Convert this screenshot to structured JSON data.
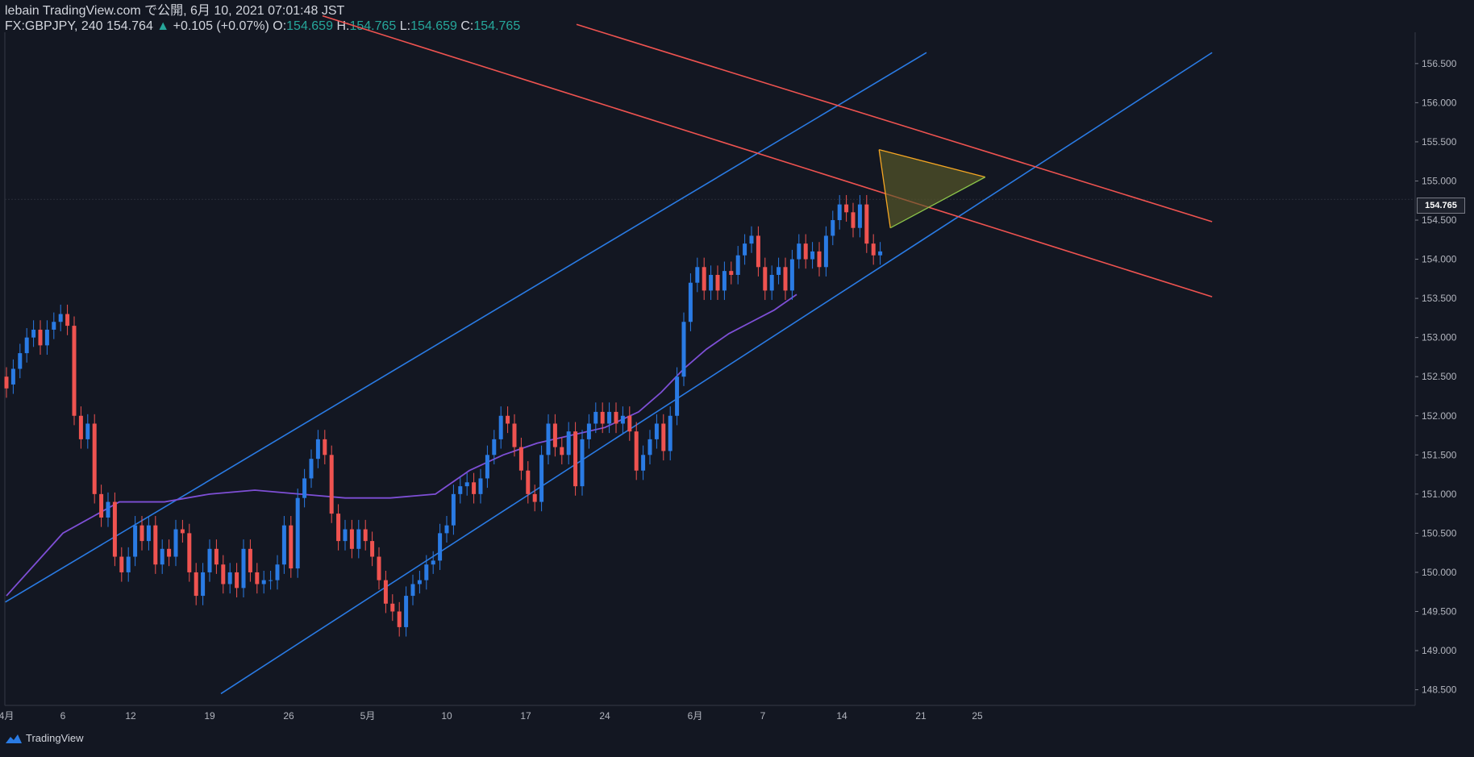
{
  "header": {
    "publisher": "lebain TradingView.com で公開, 6月 10, 2021 07:01:48 JST",
    "symbol": "FX:GBPJPY, 240",
    "last": "154.764",
    "change": "+0.105 (+0.07%)",
    "o_label": "O:",
    "o_value": "154.659",
    "h_label": "H:",
    "h_value": "154.765",
    "l_label": "L:",
    "l_value": "154.659",
    "c_label": "C:",
    "c_value": "154.765"
  },
  "footer": {
    "brand": "TradingView"
  },
  "colors": {
    "background": "#131722",
    "bull": "#2a7be4",
    "bear": "#ef5350",
    "channel_up": "#2a7be4",
    "channel_down": "#ef5350",
    "ma": "#7e4fd6",
    "triangle_fill": "#5b5a2a",
    "triangle_edge": "#f5a623"
  },
  "chart_data": {
    "type": "candlestick",
    "ylim": [
      148.3,
      156.9
    ],
    "y_ticks": [
      "156.500",
      "156.000",
      "155.500",
      "155.000",
      "154.500",
      "154.000",
      "153.500",
      "153.000",
      "152.500",
      "152.000",
      "151.500",
      "151.000",
      "150.500",
      "150.000",
      "149.500",
      "149.000",
      "148.500"
    ],
    "x_ticks": [
      "4月",
      "6",
      "12",
      "19",
      "26",
      "5月",
      "10",
      "17",
      "24",
      "6月",
      "7",
      "14",
      "21",
      "25"
    ],
    "x_tick_days": [
      0,
      5,
      11,
      18,
      25,
      32,
      39,
      46,
      53,
      61,
      67,
      74,
      81,
      86
    ],
    "current_price": "154.765",
    "ma_name": "",
    "ma": [
      [
        0,
        149.7
      ],
      [
        5,
        150.5
      ],
      [
        10,
        150.9
      ],
      [
        14,
        150.9
      ],
      [
        18,
        151.0
      ],
      [
        22,
        151.05
      ],
      [
        26,
        151.0
      ],
      [
        30,
        150.95
      ],
      [
        34,
        150.95
      ],
      [
        38,
        151.0
      ],
      [
        41,
        151.3
      ],
      [
        44,
        151.5
      ],
      [
        47,
        151.65
      ],
      [
        50,
        151.75
      ],
      [
        53,
        151.85
      ],
      [
        56,
        152.05
      ],
      [
        58,
        152.3
      ],
      [
        60,
        152.6
      ],
      [
        62,
        152.85
      ],
      [
        64,
        153.05
      ],
      [
        66,
        153.2
      ],
      [
        68,
        153.35
      ],
      [
        70,
        153.55
      ]
    ],
    "candles": [
      [
        0.0,
        152.5,
        152.35
      ],
      [
        0.6,
        152.4,
        152.6
      ],
      [
        1.2,
        152.6,
        152.8
      ],
      [
        1.8,
        152.8,
        153.0
      ],
      [
        2.4,
        153.0,
        153.1
      ],
      [
        3.0,
        153.1,
        152.9
      ],
      [
        3.6,
        152.9,
        153.1
      ],
      [
        4.2,
        153.1,
        153.2
      ],
      [
        4.8,
        153.2,
        153.3
      ],
      [
        5.4,
        153.3,
        153.15
      ],
      [
        6.0,
        153.15,
        152.0
      ],
      [
        6.6,
        152.0,
        151.7
      ],
      [
        7.2,
        151.7,
        151.9
      ],
      [
        7.8,
        151.9,
        151.0
      ],
      [
        8.4,
        151.0,
        150.7
      ],
      [
        9.0,
        150.7,
        150.9
      ],
      [
        9.6,
        150.9,
        150.2
      ],
      [
        10.2,
        150.2,
        150.0
      ],
      [
        10.8,
        150.0,
        150.2
      ],
      [
        11.4,
        150.2,
        150.6
      ],
      [
        12.0,
        150.6,
        150.4
      ],
      [
        12.6,
        150.4,
        150.6
      ],
      [
        13.2,
        150.6,
        150.1
      ],
      [
        13.8,
        150.1,
        150.3
      ],
      [
        14.4,
        150.3,
        150.2
      ],
      [
        15.0,
        150.2,
        150.55
      ],
      [
        15.6,
        150.55,
        150.5
      ],
      [
        16.2,
        150.5,
        150.0
      ],
      [
        16.8,
        150.0,
        149.7
      ],
      [
        17.4,
        149.7,
        150.0
      ],
      [
        18.0,
        150.0,
        150.3
      ],
      [
        18.6,
        150.3,
        150.1
      ],
      [
        19.2,
        150.1,
        149.85
      ],
      [
        19.8,
        149.85,
        150.0
      ],
      [
        20.4,
        150.0,
        149.8
      ],
      [
        21.0,
        149.8,
        150.3
      ],
      [
        21.6,
        150.3,
        150.0
      ],
      [
        22.2,
        150.0,
        149.85
      ],
      [
        22.8,
        149.85,
        149.9
      ],
      [
        23.4,
        149.9,
        149.9
      ],
      [
        24.0,
        149.9,
        150.1
      ],
      [
        24.6,
        150.1,
        150.6
      ],
      [
        25.2,
        150.6,
        150.05
      ],
      [
        25.8,
        150.05,
        150.95
      ],
      [
        26.4,
        150.95,
        151.2
      ],
      [
        27.0,
        151.2,
        151.45
      ],
      [
        27.6,
        151.45,
        151.7
      ],
      [
        28.2,
        151.7,
        151.5
      ],
      [
        28.8,
        151.5,
        150.75
      ],
      [
        29.4,
        150.75,
        150.4
      ],
      [
        30.0,
        150.4,
        150.55
      ],
      [
        30.6,
        150.55,
        150.3
      ],
      [
        31.2,
        150.3,
        150.55
      ],
      [
        31.8,
        150.55,
        150.4
      ],
      [
        32.4,
        150.4,
        150.2
      ],
      [
        33.0,
        150.2,
        149.9
      ],
      [
        33.6,
        149.9,
        149.6
      ],
      [
        34.2,
        149.6,
        149.5
      ],
      [
        34.8,
        149.5,
        149.3
      ],
      [
        35.4,
        149.3,
        149.7
      ],
      [
        36.0,
        149.7,
        149.85
      ],
      [
        36.6,
        149.85,
        149.9
      ],
      [
        37.2,
        149.9,
        150.1
      ],
      [
        37.8,
        150.1,
        150.15
      ],
      [
        38.4,
        150.15,
        150.5
      ],
      [
        39.0,
        150.5,
        150.6
      ],
      [
        39.6,
        150.6,
        151.0
      ],
      [
        40.2,
        151.0,
        151.1
      ],
      [
        40.8,
        151.1,
        151.15
      ],
      [
        41.4,
        151.15,
        151.0
      ],
      [
        42.0,
        151.0,
        151.2
      ],
      [
        42.6,
        151.2,
        151.5
      ],
      [
        43.2,
        151.5,
        151.7
      ],
      [
        43.8,
        151.7,
        152.0
      ],
      [
        44.4,
        152.0,
        151.9
      ],
      [
        45.0,
        151.9,
        151.6
      ],
      [
        45.6,
        151.6,
        151.3
      ],
      [
        46.2,
        151.3,
        151.0
      ],
      [
        46.8,
        151.0,
        150.9
      ],
      [
        47.4,
        150.9,
        151.5
      ],
      [
        48.0,
        151.5,
        151.9
      ],
      [
        48.6,
        151.9,
        151.6
      ],
      [
        49.2,
        151.6,
        151.5
      ],
      [
        49.8,
        151.5,
        151.8
      ],
      [
        50.4,
        151.8,
        151.1
      ],
      [
        51.0,
        151.1,
        151.7
      ],
      [
        51.6,
        151.7,
        151.9
      ],
      [
        52.2,
        151.9,
        152.05
      ],
      [
        52.8,
        152.05,
        151.9
      ],
      [
        53.4,
        151.9,
        152.05
      ],
      [
        54.0,
        152.05,
        151.9
      ],
      [
        54.6,
        151.9,
        152.0
      ],
      [
        55.2,
        152.0,
        151.8
      ],
      [
        55.8,
        151.8,
        151.3
      ],
      [
        56.4,
        151.3,
        151.5
      ],
      [
        57.0,
        151.5,
        151.7
      ],
      [
        57.6,
        151.7,
        151.9
      ],
      [
        58.2,
        151.9,
        151.55
      ],
      [
        58.8,
        151.55,
        152.0
      ],
      [
        59.4,
        152.0,
        152.5
      ],
      [
        60.0,
        152.5,
        153.2
      ],
      [
        60.6,
        153.2,
        153.7
      ],
      [
        61.2,
        153.7,
        153.9
      ],
      [
        61.8,
        153.9,
        153.6
      ],
      [
        62.4,
        153.6,
        153.8
      ],
      [
        63.0,
        153.8,
        153.6
      ],
      [
        63.6,
        153.6,
        153.85
      ],
      [
        64.2,
        153.85,
        153.8
      ],
      [
        64.8,
        153.8,
        154.05
      ],
      [
        65.4,
        154.05,
        154.2
      ],
      [
        66.0,
        154.2,
        154.3
      ],
      [
        66.6,
        154.3,
        153.9
      ],
      [
        67.2,
        153.9,
        153.6
      ],
      [
        67.8,
        153.6,
        153.8
      ],
      [
        68.4,
        153.8,
        153.9
      ],
      [
        69.0,
        153.9,
        153.6
      ],
      [
        69.6,
        153.6,
        154.0
      ],
      [
        70.2,
        154.0,
        154.2
      ],
      [
        70.8,
        154.2,
        154.0
      ],
      [
        71.4,
        154.0,
        154.1
      ],
      [
        72.0,
        154.1,
        153.9
      ],
      [
        72.6,
        153.9,
        154.3
      ],
      [
        73.2,
        154.3,
        154.5
      ],
      [
        73.8,
        154.5,
        154.7
      ],
      [
        74.4,
        154.7,
        154.6
      ],
      [
        75.0,
        154.6,
        154.4
      ],
      [
        75.6,
        154.4,
        154.7
      ],
      [
        76.2,
        154.7,
        154.2
      ],
      [
        76.8,
        154.2,
        154.05
      ],
      [
        77.4,
        154.05,
        154.1
      ]
    ]
  }
}
